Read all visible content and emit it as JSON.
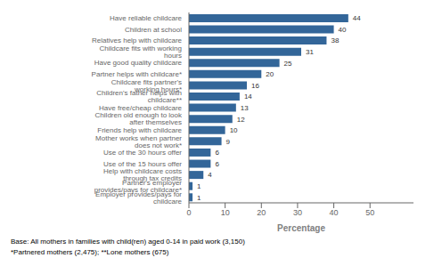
{
  "chart_data": {
    "type": "bar",
    "orientation": "horizontal",
    "categories": [
      "Employer provides/pays for childcare",
      "Partner's employer provides/pays for childcare*",
      "Help with childcare costs through tax credits",
      "Use of the 15 hours offer",
      "Use of the 30 hours offer",
      "Mother works when partner does not work*",
      "Friends help with childcare",
      "Children old enough to look after themselves",
      "Have free/cheap childcare",
      "Children's father helps with childcare**",
      "Childcare fits partner's working hours*",
      "Partner helps with childcare*",
      "Have good quality childcare",
      "Childcare fits with working hours",
      "Relatives help with childcare",
      "Children at school",
      "Have reliable childcare"
    ],
    "values": [
      1,
      1,
      4,
      6,
      6,
      9,
      10,
      12,
      13,
      14,
      16,
      20,
      25,
      31,
      38,
      40,
      44
    ],
    "color": "#336699",
    "xlim": [
      0,
      62
    ],
    "xticks": [
      0,
      10,
      20,
      30,
      40,
      50
    ],
    "xlabel": "Percentage",
    "data_labels": true,
    "grid": false,
    "annotations": [
      "Base: All mothers in families with child(ren) aged 0-14 in paid work (3,150)",
      "*Partnered mothers (2,475); **Lone mothers (675)"
    ]
  }
}
